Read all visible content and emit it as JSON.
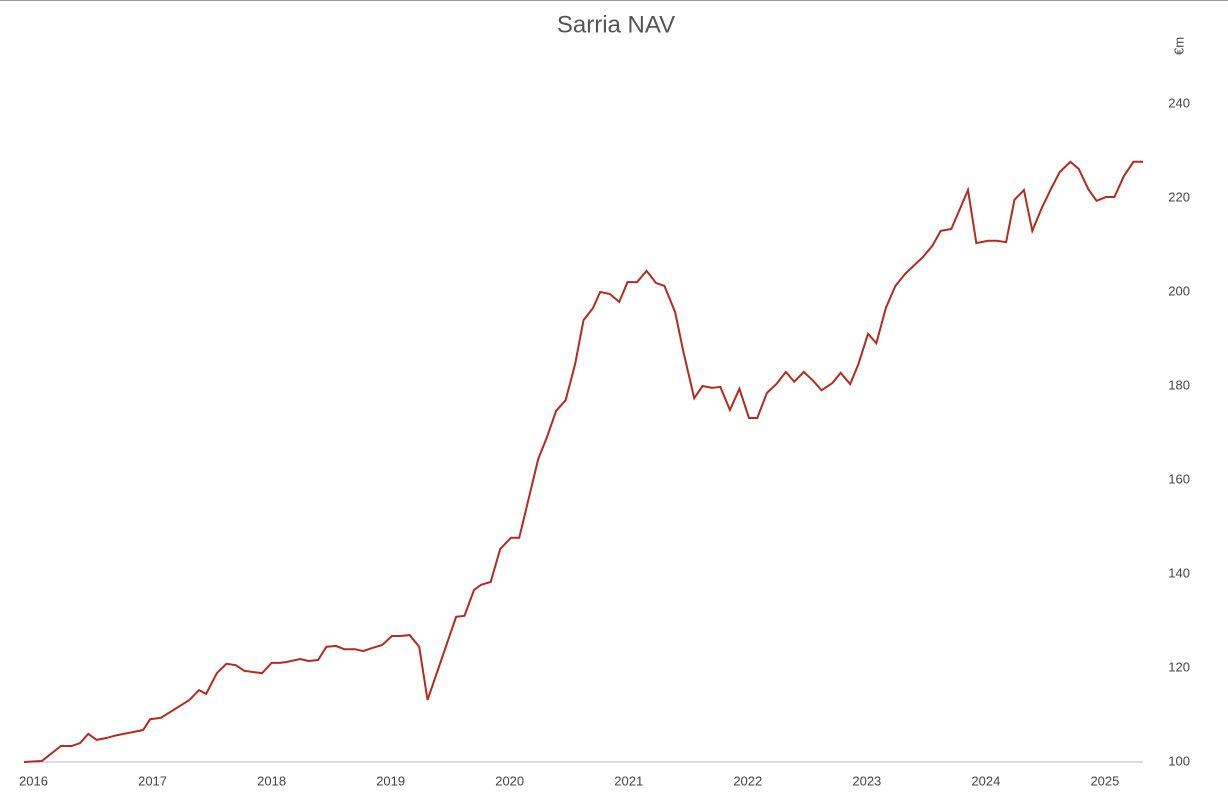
{
  "chart_data": {
    "type": "line",
    "title": "Sarria NAV",
    "y_label": "€m",
    "x": [
      2015.92,
      2016.07,
      2016.23,
      2016.32,
      2016.39,
      2016.46,
      2016.53,
      2016.61,
      2016.7,
      2016.92,
      2016.98,
      2017.07,
      2017.31,
      2017.39,
      2017.45,
      2017.54,
      2017.62,
      2017.7,
      2017.77,
      2017.92,
      2018.0,
      2018.07,
      2018.13,
      2018.24,
      2018.31,
      2018.39,
      2018.46,
      2018.54,
      2018.61,
      2018.7,
      2018.77,
      2018.85,
      2018.93,
      2019.01,
      2019.08,
      2019.16,
      2019.24,
      2019.31,
      2019.55,
      2019.62,
      2019.7,
      2019.76,
      2019.84,
      2019.92,
      2020.01,
      2020.08,
      2020.24,
      2020.31,
      2020.39,
      2020.47,
      2020.55,
      2020.62,
      2020.7,
      2020.76,
      2020.84,
      2020.92,
      2020.99,
      2021.07,
      2021.15,
      2021.23,
      2021.3,
      2021.39,
      2021.46,
      2021.55,
      2021.62,
      2021.7,
      2021.77,
      2021.85,
      2021.93,
      2022.01,
      2022.08,
      2022.16,
      2022.24,
      2022.32,
      2022.39,
      2022.47,
      2022.55,
      2022.62,
      2022.71,
      2022.78,
      2022.86,
      2022.93,
      2023.01,
      2023.08,
      2023.16,
      2023.24,
      2023.32,
      2023.39,
      2023.47,
      2023.55,
      2023.62,
      2023.71,
      2023.85,
      2023.92,
      2024.02,
      2024.09,
      2024.17,
      2024.24,
      2024.32,
      2024.39,
      2024.47,
      2024.55,
      2024.62,
      2024.71,
      2024.78,
      2024.86,
      2024.93,
      2025.01,
      2025.08,
      2025.16,
      2025.24,
      2025.32
    ],
    "series": [
      {
        "name": "Sarria NAV",
        "color": "#b52a1e",
        "values": [
          100.0,
          100.2,
          103.4,
          103.4,
          104.0,
          106.0,
          104.7,
          105.1,
          105.7,
          106.8,
          109.1,
          109.4,
          113.2,
          115.3,
          114.5,
          118.9,
          120.9,
          120.6,
          119.4,
          118.9,
          121.1,
          121.1,
          121.3,
          121.9,
          121.5,
          121.7,
          124.5,
          124.7,
          124.0,
          124.0,
          123.6,
          124.3,
          124.9,
          126.8,
          126.8,
          127.0,
          124.5,
          113.2,
          130.9,
          131.1,
          136.6,
          137.7,
          138.3,
          145.3,
          147.7,
          147.7,
          164.5,
          168.9,
          174.7,
          177.0,
          184.7,
          194.0,
          196.6,
          200.0,
          199.6,
          197.9,
          202.1,
          202.1,
          204.5,
          201.9,
          201.3,
          195.7,
          187.2,
          177.4,
          180.0,
          179.6,
          179.8,
          174.9,
          179.4,
          173.2,
          173.2,
          178.5,
          180.4,
          183.0,
          180.9,
          183.0,
          181.1,
          179.1,
          180.6,
          182.8,
          180.4,
          184.7,
          191.1,
          189.1,
          196.6,
          201.3,
          203.8,
          205.5,
          207.4,
          209.8,
          213.0,
          213.4,
          221.7,
          210.4,
          210.9,
          210.9,
          210.6,
          219.6,
          221.7,
          213.0,
          217.9,
          222.1,
          225.5,
          227.7,
          226.2,
          221.9,
          219.4,
          220.2,
          220.2,
          224.7,
          227.7,
          227.7
        ]
      }
    ],
    "xlim": [
      2015.92,
      2025.32
    ],
    "xticks": [
      2016,
      2017,
      2018,
      2019,
      2020,
      2021,
      2022,
      2023,
      2024,
      2025
    ],
    "ylim": [
      100,
      240
    ],
    "yticks": [
      100,
      120,
      140,
      160,
      180,
      200,
      220,
      240
    ],
    "grid": false
  }
}
